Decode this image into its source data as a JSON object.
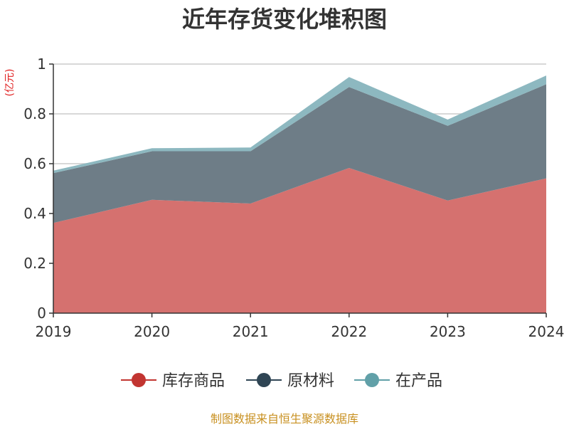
{
  "chart_data": {
    "type": "area",
    "stacked": true,
    "title": "近年存货变化堆积图",
    "unit_label": "(亿元)",
    "x": [
      "2019",
      "2020",
      "2021",
      "2022",
      "2023",
      "2024"
    ],
    "ylim": [
      0,
      1
    ],
    "yticks": [
      "0",
      "0.2",
      "0.4",
      "0.6",
      "0.8",
      "1"
    ],
    "grid": true,
    "legend_position": "bottom",
    "series": [
      {
        "name": "库存商品",
        "values": [
          0.362,
          0.455,
          0.44,
          0.583,
          0.452,
          0.541
        ],
        "fill": "#d5716f",
        "legend_color": "#c23531"
      },
      {
        "name": "原材料",
        "values": [
          0.2,
          0.195,
          0.21,
          0.325,
          0.3,
          0.378
        ],
        "fill": "#6e7d87",
        "legend_color": "#2f4554"
      },
      {
        "name": "在产品",
        "values": [
          0.01,
          0.012,
          0.015,
          0.04,
          0.025,
          0.035
        ],
        "fill": "#8db8c0",
        "legend_color": "#61a0a8"
      }
    ],
    "source": "制图数据来自恒生聚源数据库"
  }
}
